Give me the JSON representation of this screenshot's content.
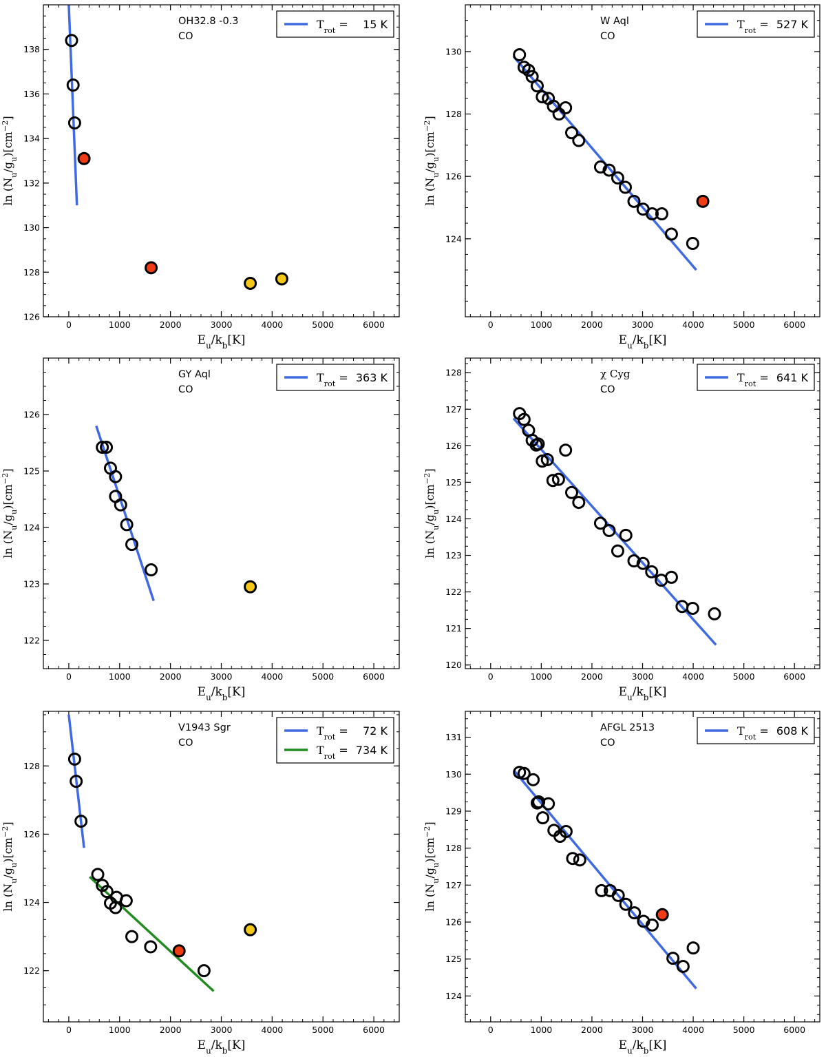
{
  "figure": {
    "xlabel": "E_u/k_b[K]",
    "ylabel": "ln(N_u/g_u)[cm^-2]"
  },
  "chart_data": [
    {
      "type": "scatter",
      "title": "OH32.8 -0.3",
      "species": "CO",
      "xlim": [
        -500,
        6500
      ],
      "ylim": [
        126,
        140
      ],
      "xticks": [
        0,
        1000,
        2000,
        3000,
        4000,
        5000,
        6000
      ],
      "yticks": [
        126,
        128,
        130,
        132,
        134,
        136,
        138
      ],
      "points": [
        {
          "x": 55,
          "y": 138.4,
          "style": "open"
        },
        {
          "x": 85,
          "y": 136.4,
          "style": "open"
        },
        {
          "x": 115,
          "y": 134.7,
          "style": "open"
        },
        {
          "x": 300,
          "y": 133.1,
          "style": "red"
        },
        {
          "x": 1620,
          "y": 128.2,
          "style": "red"
        },
        {
          "x": 3570,
          "y": 127.5,
          "style": "yellow"
        },
        {
          "x": 4190,
          "y": 127.7,
          "style": "yellow"
        }
      ],
      "fits": [
        {
          "color": "#4169e1",
          "label": "T_rot = 15 K",
          "x": [
            0,
            160
          ],
          "y": [
            140,
            131
          ]
        }
      ]
    },
    {
      "type": "scatter",
      "title": "W Aql",
      "species": "CO",
      "xlim": [
        -500,
        6500
      ],
      "ylim": [
        121.5,
        131.5
      ],
      "xticks": [
        0,
        1000,
        2000,
        3000,
        4000,
        5000,
        6000
      ],
      "yticks": [
        124,
        126,
        128,
        130
      ],
      "points": [
        {
          "x": 570,
          "y": 129.9,
          "style": "open"
        },
        {
          "x": 660,
          "y": 129.5,
          "style": "open"
        },
        {
          "x": 750,
          "y": 129.4,
          "style": "open"
        },
        {
          "x": 820,
          "y": 129.2,
          "style": "open"
        },
        {
          "x": 920,
          "y": 128.9,
          "style": "open"
        },
        {
          "x": 1020,
          "y": 128.55,
          "style": "open"
        },
        {
          "x": 1140,
          "y": 128.5,
          "style": "open"
        },
        {
          "x": 1240,
          "y": 128.25,
          "style": "open"
        },
        {
          "x": 1350,
          "y": 128.0,
          "style": "open"
        },
        {
          "x": 1480,
          "y": 128.2,
          "style": "open"
        },
        {
          "x": 1600,
          "y": 127.4,
          "style": "open"
        },
        {
          "x": 1740,
          "y": 127.15,
          "style": "open"
        },
        {
          "x": 2170,
          "y": 126.3,
          "style": "open"
        },
        {
          "x": 2340,
          "y": 126.2,
          "style": "open"
        },
        {
          "x": 2510,
          "y": 125.95,
          "style": "open"
        },
        {
          "x": 2660,
          "y": 125.65,
          "style": "open"
        },
        {
          "x": 2830,
          "y": 125.2,
          "style": "open"
        },
        {
          "x": 3010,
          "y": 124.95,
          "style": "open"
        },
        {
          "x": 3190,
          "y": 124.8,
          "style": "open"
        },
        {
          "x": 3380,
          "y": 124.8,
          "style": "open"
        },
        {
          "x": 3570,
          "y": 124.15,
          "style": "open"
        },
        {
          "x": 3990,
          "y": 123.85,
          "style": "open"
        },
        {
          "x": 4190,
          "y": 125.2,
          "style": "red"
        }
      ],
      "fits": [
        {
          "color": "#4169e1",
          "label": "T_rot = 527 K",
          "x": [
            450,
            4060
          ],
          "y": [
            129.85,
            123.0
          ]
        }
      ]
    },
    {
      "type": "scatter",
      "title": "GY Aql",
      "species": "CO",
      "xlim": [
        -500,
        6500
      ],
      "ylim": [
        121.5,
        127.0
      ],
      "xticks": [
        0,
        1000,
        2000,
        3000,
        4000,
        5000,
        6000
      ],
      "yticks": [
        122,
        123,
        124,
        125,
        126
      ],
      "points": [
        {
          "x": 660,
          "y": 125.42,
          "style": "open"
        },
        {
          "x": 740,
          "y": 125.42,
          "style": "open"
        },
        {
          "x": 820,
          "y": 125.05,
          "style": "open"
        },
        {
          "x": 920,
          "y": 124.9,
          "style": "open"
        },
        {
          "x": 920,
          "y": 124.55,
          "style": "open"
        },
        {
          "x": 1020,
          "y": 124.4,
          "style": "open"
        },
        {
          "x": 1140,
          "y": 124.05,
          "style": "open"
        },
        {
          "x": 1240,
          "y": 123.7,
          "style": "open"
        },
        {
          "x": 1620,
          "y": 123.25,
          "style": "open"
        },
        {
          "x": 3570,
          "y": 122.95,
          "style": "yellow"
        }
      ],
      "fits": [
        {
          "color": "#4169e1",
          "label": "T_rot = 363 K",
          "x": [
            540,
            1670
          ],
          "y": [
            125.8,
            122.7
          ]
        }
      ]
    },
    {
      "type": "scatter",
      "title": "χ Cyg",
      "species": "CO",
      "xlim": [
        -500,
        6500
      ],
      "ylim": [
        119.9,
        128.4
      ],
      "xticks": [
        0,
        1000,
        2000,
        3000,
        4000,
        5000,
        6000
      ],
      "yticks": [
        120,
        121,
        122,
        123,
        124,
        125,
        126,
        127,
        128
      ],
      "points": [
        {
          "x": 570,
          "y": 126.88,
          "style": "open"
        },
        {
          "x": 660,
          "y": 126.72,
          "style": "open"
        },
        {
          "x": 750,
          "y": 126.42,
          "style": "open"
        },
        {
          "x": 820,
          "y": 126.15,
          "style": "open"
        },
        {
          "x": 900,
          "y": 126.02,
          "style": "open"
        },
        {
          "x": 940,
          "y": 126.05,
          "style": "open"
        },
        {
          "x": 1020,
          "y": 125.58,
          "style": "open"
        },
        {
          "x": 1120,
          "y": 125.62,
          "style": "open"
        },
        {
          "x": 1230,
          "y": 125.05,
          "style": "open"
        },
        {
          "x": 1340,
          "y": 125.08,
          "style": "open"
        },
        {
          "x": 1480,
          "y": 125.88,
          "style": "open"
        },
        {
          "x": 1600,
          "y": 124.72,
          "style": "open"
        },
        {
          "x": 1740,
          "y": 124.45,
          "style": "open"
        },
        {
          "x": 2170,
          "y": 123.88,
          "style": "open"
        },
        {
          "x": 2340,
          "y": 123.68,
          "style": "open"
        },
        {
          "x": 2510,
          "y": 123.12,
          "style": "open"
        },
        {
          "x": 2670,
          "y": 123.55,
          "style": "open"
        },
        {
          "x": 2830,
          "y": 122.85,
          "style": "open"
        },
        {
          "x": 3010,
          "y": 122.78,
          "style": "open"
        },
        {
          "x": 3180,
          "y": 122.55,
          "style": "open"
        },
        {
          "x": 3370,
          "y": 122.32,
          "style": "open"
        },
        {
          "x": 3570,
          "y": 122.4,
          "style": "open"
        },
        {
          "x": 3780,
          "y": 121.6,
          "style": "open"
        },
        {
          "x": 3990,
          "y": 121.55,
          "style": "open"
        },
        {
          "x": 4420,
          "y": 121.4,
          "style": "open"
        }
      ],
      "fits": [
        {
          "color": "#4169e1",
          "label": "T_rot = 641 K",
          "x": [
            450,
            4450
          ],
          "y": [
            126.75,
            120.55
          ]
        }
      ]
    },
    {
      "type": "scatter",
      "title": "V1943 Sgr",
      "species": "CO",
      "xlim": [
        -500,
        6500
      ],
      "ylim": [
        120.5,
        129.6
      ],
      "xticks": [
        0,
        1000,
        2000,
        3000,
        4000,
        5000,
        6000
      ],
      "yticks": [
        122,
        124,
        126,
        128
      ],
      "points": [
        {
          "x": 115,
          "y": 128.2,
          "style": "open"
        },
        {
          "x": 145,
          "y": 127.55,
          "style": "open"
        },
        {
          "x": 240,
          "y": 126.38,
          "style": "open"
        },
        {
          "x": 570,
          "y": 124.82,
          "style": "open"
        },
        {
          "x": 660,
          "y": 124.5,
          "style": "open"
        },
        {
          "x": 750,
          "y": 124.32,
          "style": "open"
        },
        {
          "x": 820,
          "y": 123.98,
          "style": "open"
        },
        {
          "x": 920,
          "y": 123.85,
          "style": "open"
        },
        {
          "x": 940,
          "y": 124.15,
          "style": "open"
        },
        {
          "x": 1130,
          "y": 124.05,
          "style": "open"
        },
        {
          "x": 1240,
          "y": 123.0,
          "style": "open"
        },
        {
          "x": 1610,
          "y": 122.7,
          "style": "open"
        },
        {
          "x": 2170,
          "y": 122.58,
          "style": "red"
        },
        {
          "x": 2660,
          "y": 122.0,
          "style": "open"
        },
        {
          "x": 3570,
          "y": 123.2,
          "style": "yellow"
        }
      ],
      "fits": [
        {
          "color": "#4169e1",
          "label": "T_rot = 72 K",
          "x": [
            0,
            300
          ],
          "y": [
            129.5,
            125.6
          ]
        },
        {
          "color": "#228b22",
          "label": "T_rot = 734 K",
          "x": [
            410,
            2850
          ],
          "y": [
            124.75,
            121.4
          ]
        }
      ]
    },
    {
      "type": "scatter",
      "title": "AFGL 2513",
      "species": "CO",
      "xlim": [
        -500,
        6500
      ],
      "ylim": [
        123.3,
        131.7
      ],
      "xticks": [
        0,
        1000,
        2000,
        3000,
        4000,
        5000,
        6000
      ],
      "yticks": [
        124,
        125,
        126,
        127,
        128,
        129,
        130,
        131
      ],
      "points": [
        {
          "x": 570,
          "y": 130.05,
          "style": "open"
        },
        {
          "x": 660,
          "y": 130.02,
          "style": "open"
        },
        {
          "x": 840,
          "y": 129.85,
          "style": "open"
        },
        {
          "x": 920,
          "y": 129.22,
          "style": "open"
        },
        {
          "x": 950,
          "y": 129.25,
          "style": "open"
        },
        {
          "x": 1030,
          "y": 128.82,
          "style": "open"
        },
        {
          "x": 1140,
          "y": 129.2,
          "style": "open"
        },
        {
          "x": 1250,
          "y": 128.48,
          "style": "open"
        },
        {
          "x": 1370,
          "y": 128.32,
          "style": "open"
        },
        {
          "x": 1490,
          "y": 128.45,
          "style": "open"
        },
        {
          "x": 1620,
          "y": 127.72,
          "style": "open"
        },
        {
          "x": 1760,
          "y": 127.68,
          "style": "open"
        },
        {
          "x": 2190,
          "y": 126.85,
          "style": "open"
        },
        {
          "x": 2360,
          "y": 126.85,
          "style": "open"
        },
        {
          "x": 2520,
          "y": 126.72,
          "style": "open"
        },
        {
          "x": 2670,
          "y": 126.48,
          "style": "open"
        },
        {
          "x": 2840,
          "y": 126.25,
          "style": "open"
        },
        {
          "x": 3020,
          "y": 126.02,
          "style": "open"
        },
        {
          "x": 3190,
          "y": 125.92,
          "style": "open"
        },
        {
          "x": 3390,
          "y": 126.2,
          "style": "red"
        },
        {
          "x": 3600,
          "y": 125.02,
          "style": "open"
        },
        {
          "x": 3800,
          "y": 124.8,
          "style": "open"
        },
        {
          "x": 4000,
          "y": 125.3,
          "style": "open"
        }
      ],
      "fits": [
        {
          "color": "#4169e1",
          "label": "T_rot = 608 K",
          "x": [
            460,
            4060
          ],
          "y": [
            130.1,
            124.2
          ]
        }
      ]
    }
  ]
}
